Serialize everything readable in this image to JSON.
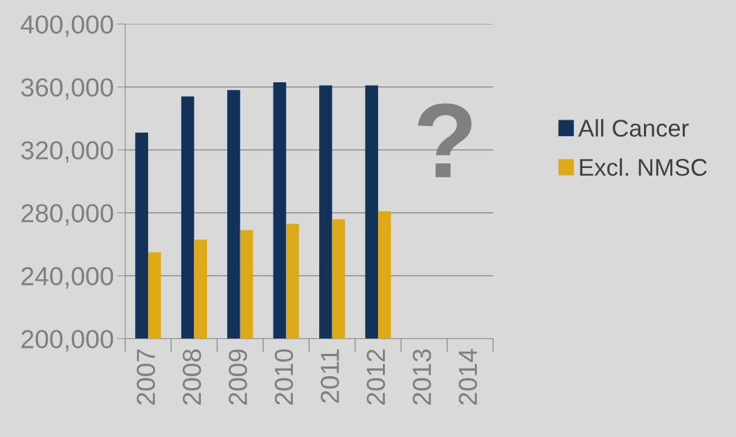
{
  "chart_data": {
    "type": "bar",
    "categories": [
      "2007",
      "2008",
      "2009",
      "2010",
      "2011",
      "2012",
      "2013",
      "2014"
    ],
    "series": [
      {
        "name": "All Cancer",
        "color": "#12325a",
        "values": [
          331000,
          354000,
          358000,
          363000,
          361000,
          361000,
          null,
          null
        ]
      },
      {
        "name": "Excl. NMSC",
        "color": "#dcaa16",
        "values": [
          255000,
          263000,
          269000,
          273000,
          276000,
          281000,
          null,
          null
        ]
      }
    ],
    "ylim": [
      200000,
      400000
    ],
    "yticks": [
      {
        "value": 200000,
        "label": "200,000"
      },
      {
        "value": 240000,
        "label": "240,000"
      },
      {
        "value": 280000,
        "label": "280,000"
      },
      {
        "value": 320000,
        "label": "320,000"
      },
      {
        "value": 360000,
        "label": "360,000"
      },
      {
        "value": 400000,
        "label": "400,000"
      }
    ],
    "grid": "y",
    "legend": "right",
    "annotations": [
      "?"
    ]
  }
}
